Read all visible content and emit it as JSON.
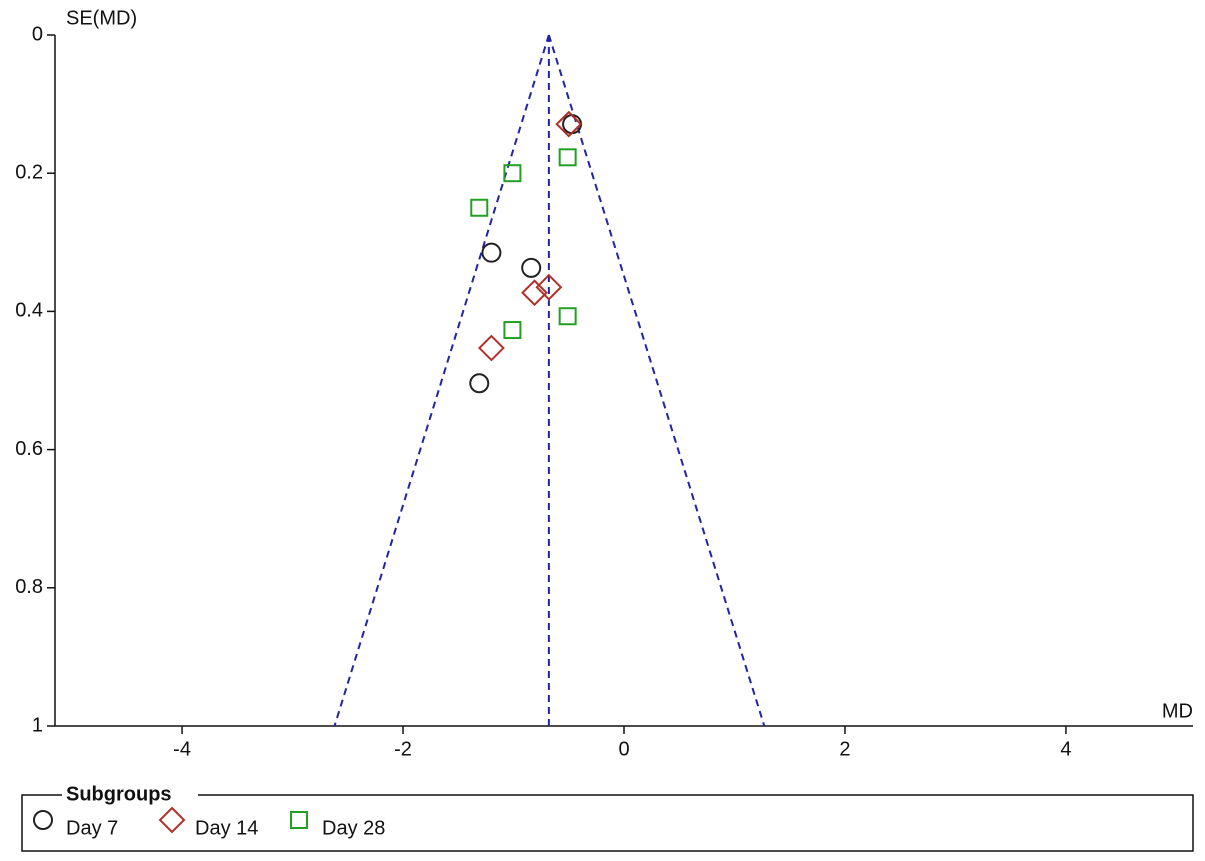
{
  "chart_data": {
    "type": "scatter",
    "y_label": "SE(MD)",
    "x_label": "MD",
    "xlim": [
      -5.15,
      5.15
    ],
    "xticks": [
      -4,
      -2,
      0,
      2,
      4
    ],
    "ylim": [
      1,
      0
    ],
    "yticks": [
      0,
      0.2,
      0.4,
      0.6,
      0.8,
      1
    ],
    "funnel": {
      "center": -0.68,
      "bottom": [
        -2.62,
        1.27
      ],
      "color": "#2222aa"
    },
    "legend_title": "Subgroups",
    "series": [
      {
        "name": "Day 7",
        "color": "#222222",
        "marker": "circle",
        "x": [
          -0.47,
          -1.2,
          -0.84,
          -1.31
        ],
        "values": [
          0.129,
          0.315,
          0.337,
          0.504
        ]
      },
      {
        "name": "Day 14",
        "color": "#b0302a",
        "marker": "diamond",
        "x": [
          -0.5,
          -0.68,
          -0.81,
          -1.2
        ],
        "values": [
          0.129,
          0.365,
          0.373,
          0.453
        ]
      },
      {
        "name": "Day 28",
        "color": "#22a022",
        "marker": "square",
        "x": [
          -0.51,
          -1.01,
          -1.31,
          -0.51,
          -1.01
        ],
        "values": [
          0.177,
          0.2,
          0.25,
          0.407,
          0.427
        ]
      }
    ]
  }
}
